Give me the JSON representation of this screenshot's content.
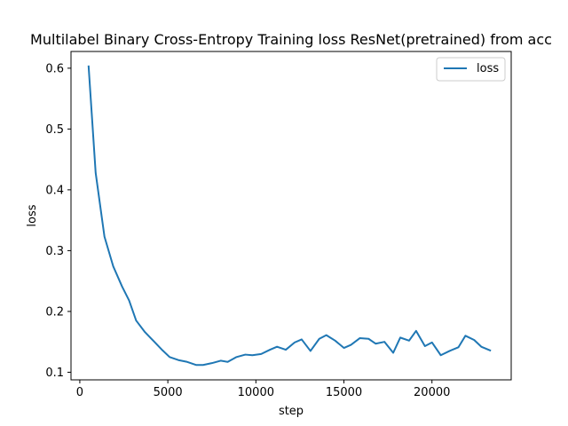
{
  "chart_data": {
    "type": "line",
    "title": "Multilabel Binary Cross-Entropy Training loss ResNet(pretrained) from acc",
    "xlabel": "step",
    "ylabel": "loss",
    "xlim": [
      -500,
      24500
    ],
    "ylim": [
      0.0875,
      0.6275
    ],
    "xticks": [
      0,
      5000,
      10000,
      15000,
      20000
    ],
    "yticks": [
      0.1,
      0.2,
      0.3,
      0.4,
      0.5,
      0.6
    ],
    "xtick_labels": [
      "0",
      "5000",
      "10000",
      "15000",
      "20000"
    ],
    "ytick_labels": [
      "0.1",
      "0.2",
      "0.3",
      "0.4",
      "0.5",
      "0.6"
    ],
    "grid": false,
    "legend": {
      "position": "top-right"
    },
    "series": [
      {
        "name": "loss",
        "color": "#1f77b4",
        "x": [
          500,
          900,
          1400,
          1900,
          2400,
          2800,
          3200,
          3700,
          4200,
          4700,
          5100,
          5600,
          6100,
          6600,
          7000,
          7500,
          8000,
          8400,
          8900,
          9400,
          9800,
          10300,
          10800,
          11200,
          11700,
          12200,
          12600,
          13100,
          13600,
          14000,
          14500,
          15000,
          15400,
          15900,
          16400,
          16800,
          17300,
          17800,
          18200,
          18700,
          19100,
          19600,
          20000,
          20500,
          21000,
          21500,
          21900,
          22400,
          22800,
          23300
        ],
        "y": [
          0.603,
          0.428,
          0.323,
          0.274,
          0.241,
          0.218,
          0.185,
          0.166,
          0.151,
          0.136,
          0.125,
          0.12,
          0.117,
          0.112,
          0.112,
          0.115,
          0.119,
          0.117,
          0.125,
          0.129,
          0.128,
          0.13,
          0.137,
          0.142,
          0.137,
          0.149,
          0.154,
          0.135,
          0.155,
          0.161,
          0.152,
          0.14,
          0.145,
          0.156,
          0.155,
          0.147,
          0.15,
          0.132,
          0.157,
          0.152,
          0.168,
          0.143,
          0.149,
          0.128,
          0.135,
          0.141,
          0.16,
          0.153,
          0.142,
          0.136
        ]
      }
    ]
  }
}
